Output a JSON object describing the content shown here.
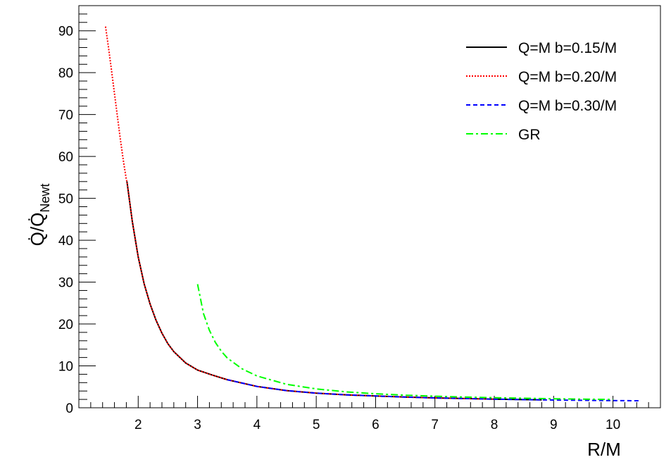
{
  "chart_data": {
    "type": "line",
    "xlabel": "R/M",
    "ylabel": "Q̇/Q̇_Newt",
    "ylabel_main": "Q̇/Q̇",
    "ylabel_sub": "Newt",
    "xlim": [
      1.0,
      10.8
    ],
    "ylim": [
      0,
      96
    ],
    "x_ticks": [
      2,
      3,
      4,
      5,
      6,
      7,
      8,
      9,
      10
    ],
    "y_ticks": [
      0,
      10,
      20,
      30,
      40,
      50,
      60,
      70,
      80,
      90
    ],
    "grid": false,
    "legend_position": "top-right",
    "series": [
      {
        "name": "Q=M b=0.15/M",
        "color": "#000000",
        "style": "solid",
        "x": [
          1.81,
          1.9,
          2.0,
          2.1,
          2.2,
          2.3,
          2.4,
          2.5,
          2.6,
          2.8,
          3.0,
          3.25,
          3.5,
          4.0,
          4.5,
          5.0,
          5.5,
          6.0,
          6.5,
          7.0,
          7.5,
          8.0,
          8.5,
          8.8
        ],
        "y": [
          54.0,
          44.5,
          36.0,
          29.6,
          24.8,
          20.9,
          17.8,
          15.3,
          13.4,
          10.7,
          9.0,
          7.8,
          6.7,
          5.1,
          4.1,
          3.5,
          3.1,
          2.8,
          2.55,
          2.35,
          2.2,
          2.05,
          1.95,
          1.9
        ]
      },
      {
        "name": "Q=M b=0.20/M",
        "color": "#ff0000",
        "style": "dotted",
        "x": [
          1.45,
          1.5,
          1.55,
          1.6,
          1.65,
          1.7,
          1.75,
          1.8,
          1.81,
          1.9,
          2.0,
          2.1,
          2.2,
          2.3,
          2.4,
          2.5,
          2.6,
          2.8,
          3.0,
          3.25,
          3.5,
          4.0,
          4.5,
          5.0,
          5.5,
          6.0,
          6.5,
          7.0,
          7.5,
          8.0
        ],
        "y": [
          91.0,
          86.0,
          80.5,
          75.0,
          69.5,
          64.0,
          59.0,
          54.5,
          54.0,
          44.5,
          36.0,
          29.6,
          24.8,
          20.9,
          17.8,
          15.3,
          13.4,
          10.7,
          9.0,
          7.8,
          6.7,
          5.1,
          4.1,
          3.5,
          3.1,
          2.8,
          2.55,
          2.35,
          2.2,
          2.05
        ]
      },
      {
        "name": "Q=M b=0.30/M",
        "color": "#0000ff",
        "style": "dashed",
        "x": [
          3.5,
          4.0,
          4.5,
          5.0,
          5.5,
          6.0,
          6.5,
          7.0,
          7.5,
          8.0,
          8.5,
          9.0,
          9.5,
          10.0,
          10.45
        ],
        "y": [
          6.7,
          5.1,
          4.1,
          3.5,
          3.1,
          2.8,
          2.55,
          2.35,
          2.2,
          2.05,
          1.95,
          1.85,
          1.78,
          1.72,
          1.68
        ]
      },
      {
        "name": "GR",
        "color": "#00ff00",
        "style": "dashdot",
        "x": [
          3.0,
          3.1,
          3.2,
          3.3,
          3.4,
          3.5,
          3.75,
          4.0,
          4.5,
          5.0,
          5.5,
          6.0,
          6.5,
          7.0,
          7.5,
          8.0,
          8.5,
          9.0,
          9.5,
          10.0
        ],
        "y": [
          29.5,
          22.5,
          18.5,
          15.6,
          13.5,
          11.9,
          9.3,
          7.6,
          5.6,
          4.5,
          3.8,
          3.35,
          3.0,
          2.75,
          2.55,
          2.4,
          2.27,
          2.15,
          2.05,
          1.98
        ]
      }
    ]
  }
}
